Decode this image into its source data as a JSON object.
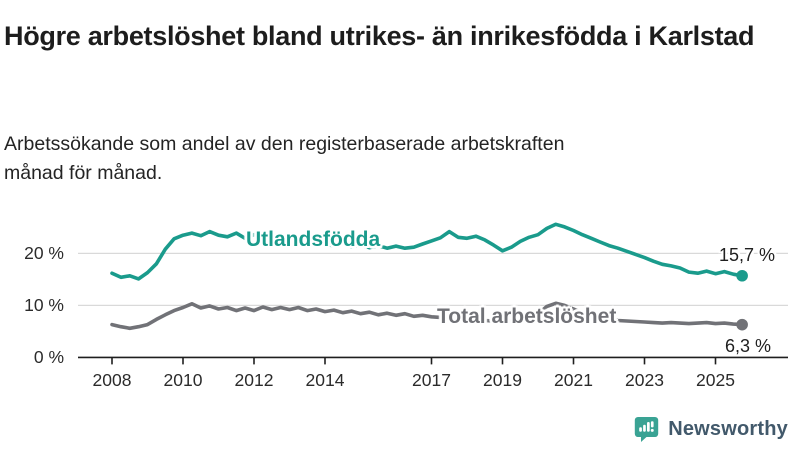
{
  "header": {
    "title": "Högre arbetslöshet bland utrikes- än inrikesfödda i Karlstad",
    "subtitle": "Arbetssökande som andel av den registerbaserade arbetskraften månad för månad."
  },
  "chart_data": {
    "type": "line",
    "title": "Högre arbetslöshet bland utrikes- än inrikesfödda i Karlstad",
    "xlabel": "",
    "ylabel": "",
    "unit": "%",
    "grid": "horizontal",
    "grid_color": "#d9d9d9",
    "axis_color": "#1f1f1f",
    "x_domain": [
      2008,
      2025.83
    ],
    "ylim": [
      0,
      27
    ],
    "x_tick_years": [
      2008,
      2010,
      2012,
      2014,
      2017,
      2019,
      2021,
      2023,
      2025
    ],
    "x_tick_labels": [
      "2008",
      "2010",
      "2012",
      "2014",
      "2017",
      "2019",
      "2021",
      "2023",
      "2025"
    ],
    "y_tick_values": [
      0,
      10,
      20
    ],
    "y_tick_labels": [
      "0 %",
      "10 %",
      "20 %"
    ],
    "y_gridline_values": [
      10,
      20
    ],
    "x_start": 2008.0,
    "x_step": 0.25,
    "x_end": 2025.75,
    "series": [
      {
        "name": "Utlandsfödda",
        "color": "#1a9b8c",
        "end_label": "15,7 %",
        "end_value": 15.7,
        "values": [
          16.2,
          15.4,
          15.7,
          15.1,
          16.3,
          18.0,
          20.8,
          22.8,
          23.5,
          23.9,
          23.4,
          24.2,
          23.5,
          23.2,
          23.9,
          22.9,
          23.6,
          23.1,
          23.5,
          23.0,
          23.2,
          22.8,
          22.9,
          22.4,
          21.9,
          21.4,
          21.8,
          21.3,
          21.6,
          21.1,
          21.5,
          21.0,
          21.4,
          21.0,
          21.2,
          21.8,
          22.4,
          23.0,
          24.2,
          23.1,
          22.9,
          23.3,
          22.6,
          21.6,
          20.5,
          21.2,
          22.3,
          23.1,
          23.6,
          24.8,
          25.6,
          25.1,
          24.4,
          23.6,
          22.9,
          22.2,
          21.5,
          21.0,
          20.4,
          19.8,
          19.2,
          18.5,
          17.9,
          17.6,
          17.2,
          16.4,
          16.2,
          16.6,
          16.1,
          16.5,
          16.0,
          15.7
        ]
      },
      {
        "name": "Total arbetslöshet",
        "color": "#717277",
        "end_label": "6,3 %",
        "end_value": 6.3,
        "values": [
          6.3,
          5.9,
          5.6,
          5.9,
          6.3,
          7.3,
          8.2,
          9.0,
          9.6,
          10.3,
          9.5,
          9.9,
          9.3,
          9.6,
          9.0,
          9.5,
          9.0,
          9.7,
          9.2,
          9.6,
          9.2,
          9.6,
          9.0,
          9.3,
          8.8,
          9.1,
          8.6,
          8.9,
          8.4,
          8.7,
          8.2,
          8.5,
          8.1,
          8.4,
          7.9,
          8.1,
          7.8,
          7.7,
          7.5,
          7.3,
          7.2,
          7.4,
          7.1,
          7.0,
          6.9,
          7.1,
          7.3,
          7.6,
          8.3,
          9.8,
          10.4,
          10.0,
          9.3,
          8.6,
          8.0,
          7.6,
          7.3,
          7.1,
          7.0,
          6.9,
          6.8,
          6.7,
          6.6,
          6.7,
          6.6,
          6.5,
          6.6,
          6.7,
          6.5,
          6.6,
          6.4,
          6.3
        ]
      }
    ]
  },
  "labels": {
    "series_utlandsfodda": "Utlandsfödda",
    "series_total": "Total arbetslöshet",
    "end_utlandsfodda": "15,7 %",
    "end_total": "6,3 %"
  },
  "footer": {
    "brand": "Newsworthy",
    "brand_color": "#42596b",
    "icon": "bar-chart-speech-bubble-icon",
    "icon_color": "#3aa394"
  }
}
